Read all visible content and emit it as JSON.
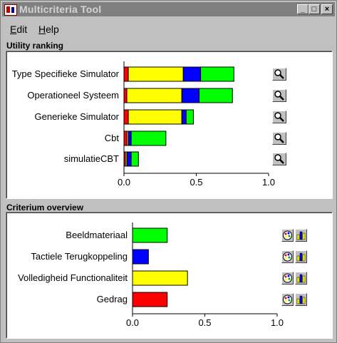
{
  "window": {
    "title": "Multicriteria Tool"
  },
  "titlebar_buttons": {
    "minimize": "_",
    "maximize": "□",
    "close": "×"
  },
  "menu": {
    "edit": "Edit",
    "help": "Help"
  },
  "sections": {
    "utility": "Utility ranking",
    "criterium": "Criterium overview"
  },
  "colors": {
    "red": "#ff0000",
    "yellow": "#ffff00",
    "blue": "#0000ff",
    "green": "#00ff00"
  },
  "chart_data": [
    {
      "type": "bar",
      "stacked": true,
      "orientation": "horizontal",
      "title": "Utility ranking",
      "categories": [
        "Type Specifieke Simulator",
        "Operationeel Systeem",
        "Generieke Simulator",
        "Cbt",
        "simulatieCBT"
      ],
      "series": [
        {
          "color": "#ff0000",
          "values": [
            0.03,
            0.02,
            0.03,
            0.02,
            0.01
          ]
        },
        {
          "color": "#ffff00",
          "values": [
            0.38,
            0.38,
            0.37,
            0.01,
            0.01
          ]
        },
        {
          "color": "#0000ff",
          "values": [
            0.12,
            0.12,
            0.03,
            0.02,
            0.03
          ]
        },
        {
          "color": "#00ff00",
          "values": [
            0.23,
            0.23,
            0.05,
            0.24,
            0.05
          ]
        }
      ],
      "xlim": [
        0.0,
        1.0
      ],
      "xticks": [
        "0.0",
        "0.5",
        "1.0"
      ]
    },
    {
      "type": "bar",
      "orientation": "horizontal",
      "title": "Criterium overview",
      "categories": [
        "Beeldmateriaal",
        "Tactiele Terugkoppeling",
        "Volledigheid Functionaliteit",
        "Gedrag"
      ],
      "values": [
        0.24,
        0.11,
        0.38,
        0.24
      ],
      "colors": [
        "#00ff00",
        "#0000ff",
        "#ffff00",
        "#ff0000"
      ],
      "xlim": [
        0.0,
        1.0
      ],
      "xticks": [
        "0.0",
        "0.5",
        "1.0"
      ]
    }
  ]
}
